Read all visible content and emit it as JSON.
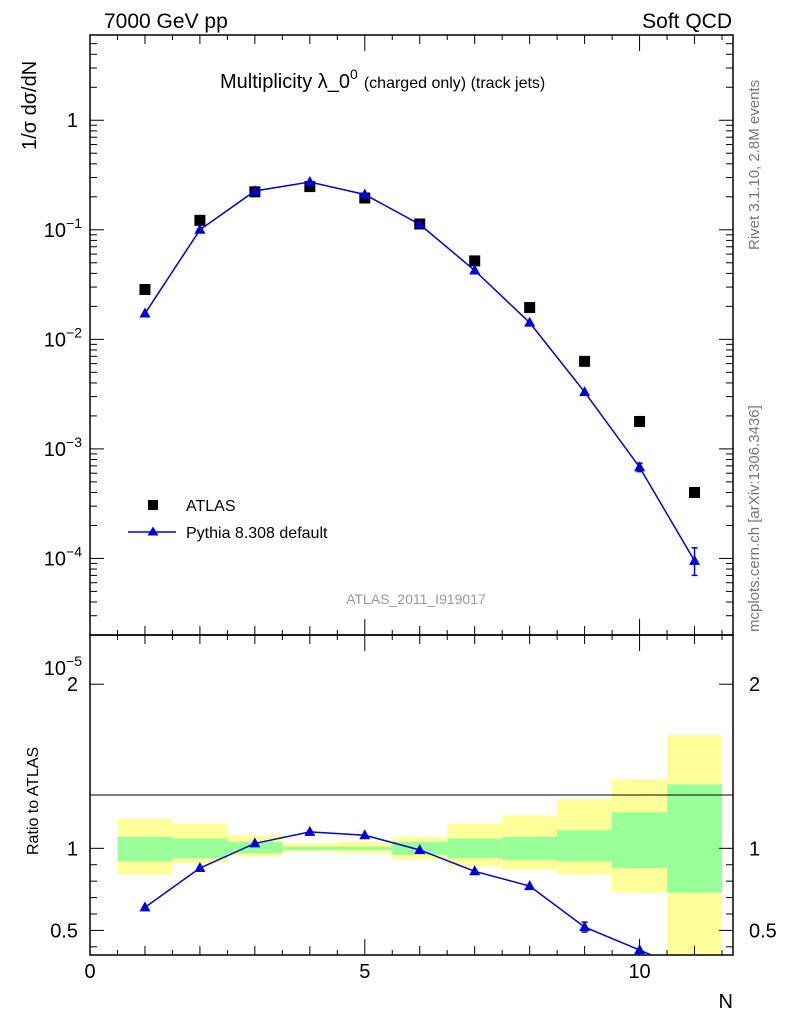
{
  "header": {
    "left": "7000 GeV pp",
    "right": "Soft QCD"
  },
  "side_labels": {
    "rivet": "Rivet 3.1.10,  2.8M events",
    "mcplots": "mcplots.cern.ch [arXiv:1306.3436]"
  },
  "chart_data": [
    {
      "type": "scatter",
      "title_main": "Multiplicity λ_0",
      "title_sup": "0",
      "title_sub": "(charged only) (track jets)",
      "ylabel": "1/σ dσ/dN",
      "yscale": "log",
      "ylim": [
        2e-05,
        6
      ],
      "xlim": [
        0,
        11.7
      ],
      "analysis_label": "ATLAS_2011_I919017",
      "legend": {
        "position": "bottom-left",
        "entries": [
          "ATLAS",
          "Pythia 8.308 default"
        ]
      },
      "series": [
        {
          "name": "ATLAS",
          "marker": "square",
          "color": "#000000",
          "x": [
            1,
            2,
            3,
            4,
            5,
            6,
            7,
            8,
            9,
            10,
            11
          ],
          "y": [
            0.0285,
            0.122,
            0.222,
            0.248,
            0.195,
            0.113,
            0.052,
            0.0195,
            0.0063,
            0.00178,
            0.0004
          ]
        },
        {
          "name": "Pythia 8.308 default",
          "marker": "triangle",
          "color": "#0000dd",
          "x": [
            1,
            2,
            3,
            4,
            5,
            6,
            7,
            8,
            9,
            10,
            11
          ],
          "y": [
            0.0172,
            0.1,
            0.226,
            0.273,
            0.21,
            0.112,
            0.0425,
            0.0142,
            0.0033,
            0.00068,
            9.5e-05
          ],
          "yerr_low": [
            0,
            0,
            0,
            0,
            0,
            0,
            0,
            0,
            0,
            6e-05,
            2.5e-05
          ],
          "yerr_high": [
            0,
            0,
            0,
            0,
            0,
            0,
            0,
            0,
            0,
            6e-05,
            3e-05
          ]
        }
      ]
    },
    {
      "type": "line",
      "ylabel": "Ratio to ATLAS",
      "xlabel": "N",
      "ylim": [
        0.35,
        2.3
      ],
      "xlim": [
        0,
        11.7
      ],
      "y_ticks": [
        "0.5",
        "1",
        "2"
      ],
      "x_ticks": [
        "0",
        "5",
        "10"
      ],
      "uncertainty_bands": {
        "x_low": [
          0.5,
          1.5,
          2.5,
          3.5,
          4.5,
          5.5,
          6.5,
          7.5,
          8.5,
          9.5,
          10.5
        ],
        "x_high": [
          1.5,
          2.5,
          3.5,
          4.5,
          5.5,
          6.5,
          7.5,
          8.5,
          9.5,
          10.5,
          11.5
        ],
        "stat_low": [
          0.92,
          0.94,
          0.97,
          0.99,
          0.99,
          0.96,
          0.94,
          0.93,
          0.92,
          0.88,
          0.73
        ],
        "stat_high": [
          1.07,
          1.06,
          1.04,
          1.01,
          1.01,
          1.04,
          1.06,
          1.07,
          1.11,
          1.22,
          1.39
        ],
        "total_low": [
          0.84,
          0.91,
          0.95,
          0.98,
          0.97,
          0.93,
          0.89,
          0.87,
          0.84,
          0.73,
          0.3
        ],
        "total_high": [
          1.18,
          1.15,
          1.08,
          1.03,
          1.04,
          1.07,
          1.15,
          1.2,
          1.3,
          1.42,
          1.69
        ],
        "stat_color": "#99ff99",
        "total_color": "#ffff99"
      },
      "series": [
        {
          "name": "Pythia 8.308 default",
          "marker": "triangle",
          "color": "#0000dd",
          "x": [
            1,
            2,
            3,
            4,
            5,
            6,
            7,
            8,
            9,
            10,
            11
          ],
          "y": [
            0.64,
            0.88,
            1.03,
            1.1,
            1.08,
            0.99,
            0.86,
            0.77,
            0.52,
            0.38,
            0.24
          ],
          "yerr_low": [
            0,
            0,
            0,
            0,
            0,
            0,
            0,
            0,
            0.03,
            0,
            0
          ],
          "yerr_high": [
            0,
            0,
            0,
            0,
            0,
            0,
            0,
            0,
            0.03,
            0,
            0
          ]
        }
      ]
    }
  ]
}
